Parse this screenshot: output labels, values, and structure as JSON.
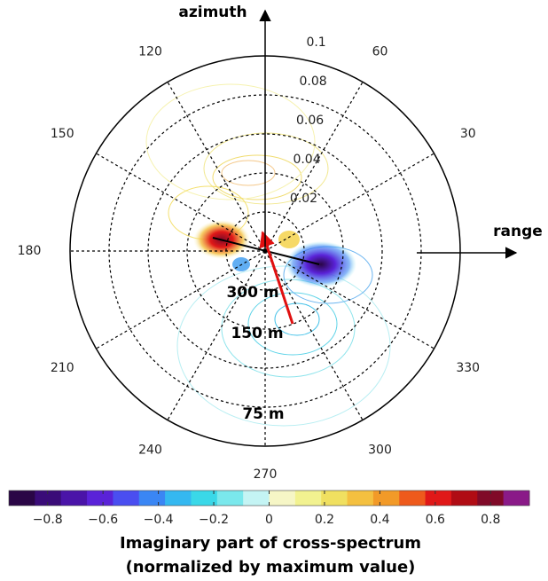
{
  "chart_data": {
    "type": "polar",
    "theta_label": "azimuth",
    "r_label": "range",
    "rlim": [
      0,
      0.1
    ],
    "rticks": [
      0.02,
      0.04,
      0.06,
      0.08,
      0.1
    ],
    "thetaticks": [
      30,
      60,
      120,
      150,
      180,
      210,
      240,
      270,
      300,
      330
    ],
    "annotations": [
      "300 m",
      "150 m",
      "75 m"
    ],
    "colorbar": {
      "label": [
        "Imaginary part of cross-spectrum",
        "(normalized by maximum value)"
      ],
      "clim": [
        -0.94,
        0.94
      ],
      "cticks": [
        {
          "value": -0.8,
          "label": "−0.8"
        },
        {
          "value": -0.6,
          "label": "−0.6"
        },
        {
          "value": -0.4,
          "label": "−0.4"
        },
        {
          "value": -0.2,
          "label": "−0.2"
        },
        0,
        0.2,
        0.4,
        0.6,
        0.8
      ],
      "colormap": [
        "#2a0646",
        "#3a0c78",
        "#4a14a8",
        "#5a22d8",
        "#4a4ef0",
        "#3a86f4",
        "#34b8f0",
        "#3ad8e8",
        "#7ae8ec",
        "#c4f4f4",
        "#f6f6c6",
        "#f2f290",
        "#f0e060",
        "#f4c040",
        "#f29a28",
        "#ee5a1c",
        "#e01818",
        "#b00c14",
        "#800a28",
        "#8a1a88"
      ]
    }
  }
}
